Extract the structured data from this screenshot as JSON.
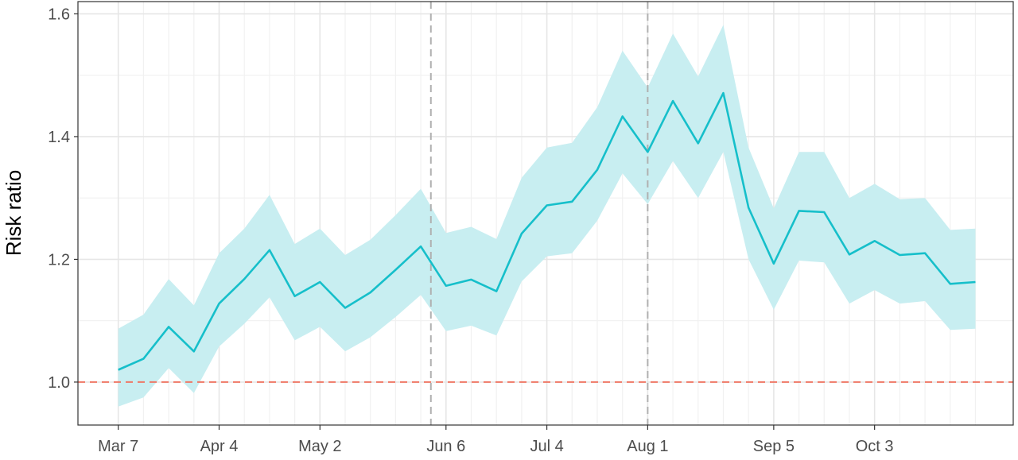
{
  "chart_data": {
    "type": "line",
    "title": "",
    "xlabel": "",
    "ylabel": "Risk ratio",
    "x_tick_labels": [
      {
        "label": "Mar 7",
        "week": 0
      },
      {
        "label": "Apr 4",
        "week": 4
      },
      {
        "label": "May 2",
        "week": 8
      },
      {
        "label": "Jun 6",
        "week": 13
      },
      {
        "label": "Jul 4",
        "week": 17
      },
      {
        "label": "Aug 1",
        "week": 21
      },
      {
        "label": "Sep 5",
        "week": 26
      },
      {
        "label": "Oct 3",
        "week": 30
      }
    ],
    "y_ticks": [
      1.0,
      1.2,
      1.4,
      1.6
    ],
    "y_tick_labels": [
      "1.0",
      "1.2",
      "1.4",
      "1.6"
    ],
    "xlim": [
      -1.6,
      35.5
    ],
    "ylim": [
      0.93,
      1.62
    ],
    "grid": true,
    "series": [
      {
        "color": "#16bfca",
        "band_color": "#c8eef1",
        "week": [
          0,
          1,
          2,
          3,
          4,
          5,
          6,
          7,
          8,
          9,
          10,
          11,
          12,
          13,
          14,
          15,
          16,
          17,
          18,
          19,
          20,
          21,
          22,
          23,
          24,
          25,
          26,
          27,
          28,
          29,
          30,
          31,
          32,
          33,
          34
        ],
        "values": [
          1.02,
          1.038,
          1.09,
          1.05,
          1.128,
          1.168,
          1.215,
          1.14,
          1.163,
          1.121,
          1.146,
          1.183,
          1.221,
          1.157,
          1.167,
          1.148,
          1.242,
          1.288,
          1.294,
          1.346,
          1.433,
          1.375,
          1.458,
          1.389,
          1.471,
          1.284,
          1.193,
          1.279,
          1.277,
          1.208,
          1.23,
          1.207,
          1.21,
          1.16,
          1.163
        ],
        "lower": [
          0.96,
          0.975,
          1.023,
          0.982,
          1.058,
          1.095,
          1.138,
          1.068,
          1.09,
          1.05,
          1.073,
          1.106,
          1.142,
          1.083,
          1.092,
          1.076,
          1.164,
          1.205,
          1.21,
          1.263,
          1.34,
          1.29,
          1.36,
          1.3,
          1.375,
          1.2,
          1.118,
          1.198,
          1.195,
          1.128,
          1.15,
          1.128,
          1.132,
          1.085,
          1.087
        ],
        "upper": [
          1.087,
          1.11,
          1.168,
          1.125,
          1.21,
          1.25,
          1.305,
          1.225,
          1.25,
          1.207,
          1.232,
          1.272,
          1.315,
          1.243,
          1.253,
          1.233,
          1.333,
          1.382,
          1.39,
          1.448,
          1.54,
          1.48,
          1.568,
          1.498,
          1.582,
          1.382,
          1.283,
          1.375,
          1.375,
          1.3,
          1.323,
          1.298,
          1.3,
          1.248,
          1.25
        ]
      }
    ],
    "reference_lines": [
      {
        "orientation": "horizontal",
        "value": 1.0,
        "style": "dashed",
        "color": "#ef7866"
      },
      {
        "orientation": "vertical",
        "week": 12.4,
        "style": "dashed",
        "color": "#b0b0b0"
      },
      {
        "orientation": "vertical",
        "week": 21.0,
        "style": "dashed",
        "color": "#b0b0b0"
      }
    ]
  }
}
